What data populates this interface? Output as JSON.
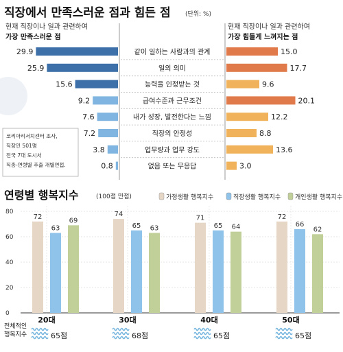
{
  "top": {
    "title": "직장에서 만족스러운 점과 힘든 점",
    "unit": "(단위: %)",
    "left_header_1": "현재 직장이나 일과 관련하여",
    "left_header_2": "가장 만족스러운 점",
    "right_header_1": "현재 직장이나 일과 관련하여",
    "right_header_2": "가장 힘들게 느껴지는 점",
    "source_lines": [
      "코리아리서치센터 조사,",
      "직장인 501명",
      "전국 7대 도시서",
      "직종-연령별 추출 개별면접."
    ],
    "colors": {
      "satisfied_dark": "#3d6fa8",
      "satisfied_light": "#7fb5e0",
      "hard_orange": "#e07a4a",
      "hard_light": "#f0b25a"
    }
  },
  "bottom": {
    "title": "연령별 행복지수",
    "subtitle": "(100점 만점)",
    "overall_label_1": "전체적인",
    "overall_label_2": "행복지수",
    "score_suffix": "점",
    "colors": {
      "work_family": "#e6d6c6",
      "work": "#8fc3ea",
      "personal": "#c1cf98"
    }
  },
  "chart_data": [
    {
      "type": "bar",
      "orientation": "horizontal",
      "title": "직장에서 만족스러운 점과 힘든 점",
      "categories": [
        "같이 일하는 사람과의 관계",
        "일의 의미",
        "능력을 인정받는 것",
        "급여수준과 근무조건",
        "내가 성장, 발전한다는 느낌",
        "직장의 안정성",
        "업무량과 업무 강도",
        "없음 또는 무응답"
      ],
      "series": [
        {
          "name": "가장 만족스러운 점",
          "values": [
            29.9,
            25.9,
            15.6,
            9.2,
            7.6,
            7.2,
            3.8,
            0.8
          ]
        },
        {
          "name": "가장 힘들게 느껴지는 점",
          "values": [
            15.0,
            17.7,
            9.6,
            20.1,
            12.2,
            8.8,
            13.6,
            3.0
          ]
        }
      ]
    },
    {
      "type": "bar",
      "title": "연령별 행복지수",
      "subtitle": "(100점 만점)",
      "categories": [
        "20대",
        "30대",
        "40대",
        "50대"
      ],
      "series": [
        {
          "name": "가정생활 행복지수",
          "values": [
            72,
            74,
            71,
            72
          ]
        },
        {
          "name": "직장생활 행복지수",
          "values": [
            63,
            65,
            65,
            66
          ]
        },
        {
          "name": "개인생활 행복지수",
          "values": [
            69,
            63,
            64,
            62
          ]
        }
      ],
      "overall": {
        "label": "전체적인 행복지수",
        "values": [
          65,
          68,
          65,
          65
        ]
      },
      "yticks": [
        0,
        20,
        40,
        60,
        80
      ],
      "ylim": [
        0,
        80
      ]
    }
  ]
}
